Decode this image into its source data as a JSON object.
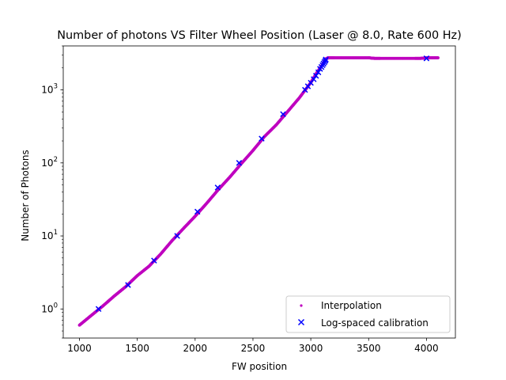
{
  "chart_data": {
    "type": "scatter",
    "title": "Number of photons VS Filter Wheel Position (Laser @ 8.0, Rate 600 Hz)",
    "xlabel": "FW position",
    "ylabel": "Number of Photons",
    "xlim": [
      860,
      4250
    ],
    "ylim": [
      0.4,
      4000
    ],
    "yscale": "log",
    "grid": false,
    "legend_position": "lower-right",
    "x_ticks": [
      {
        "value": 1000,
        "label": "1000"
      },
      {
        "value": 1500,
        "label": "1500"
      },
      {
        "value": 2000,
        "label": "2000"
      },
      {
        "value": 2500,
        "label": "2500"
      },
      {
        "value": 3000,
        "label": "3000"
      },
      {
        "value": 3500,
        "label": "3500"
      },
      {
        "value": 4000,
        "label": "4000"
      }
    ],
    "y_ticks": [
      {
        "value": 1,
        "base": "10",
        "exp": "0"
      },
      {
        "value": 10,
        "base": "10",
        "exp": "1"
      },
      {
        "value": 100,
        "base": "10",
        "exp": "2"
      },
      {
        "value": 1000,
        "base": "10",
        "exp": "3"
      }
    ],
    "series": [
      {
        "name": "Interpolation",
        "marker": "dot",
        "color": "#bf00bf",
        "x": [
          1000,
          1100,
          1200,
          1300,
          1400,
          1500,
          1600,
          1700,
          1800,
          1900,
          2000,
          2100,
          2200,
          2300,
          2400,
          2500,
          2600,
          2700,
          2800,
          2900,
          3000,
          3050,
          3100,
          3130,
          3150,
          3200,
          3300,
          3400,
          3500,
          3550,
          3600,
          3700,
          3800,
          3900,
          3950,
          4000,
          4050,
          4100
        ],
        "y": [
          0.6,
          0.81,
          1.09,
          1.5,
          2.02,
          2.86,
          3.83,
          5.6,
          8.6,
          12.7,
          18.6,
          28.0,
          43.0,
          64.0,
          98.0,
          148.0,
          230.0,
          330.0,
          505.0,
          775.0,
          1260.0,
          1700.0,
          2200.0,
          2650.0,
          2750.0,
          2750.0,
          2750.0,
          2750.0,
          2750.0,
          2700.0,
          2700.0,
          2700.0,
          2700.0,
          2700.0,
          2700.0,
          2750.0,
          2750.0,
          2750.0
        ]
      },
      {
        "name": "Log-spaced calibration",
        "marker": "x",
        "color": "#0000ff",
        "x": [
          1165,
          1420,
          1645,
          1845,
          2020,
          2195,
          2380,
          2575,
          2760,
          2950,
          2975,
          3000,
          3025,
          3045,
          3065,
          3080,
          3092,
          3102,
          3110,
          3118,
          3125,
          3130,
          4000
        ],
        "y": [
          1.0,
          2.13,
          4.6,
          10.0,
          21.5,
          46.0,
          100.0,
          215.0,
          465.0,
          1000.0,
          1120.0,
          1250.0,
          1400.0,
          1560.0,
          1740.0,
          1940.0,
          2060.0,
          2180.0,
          2290.0,
          2400.0,
          2500.0,
          2600.0,
          2700.0
        ]
      }
    ]
  }
}
